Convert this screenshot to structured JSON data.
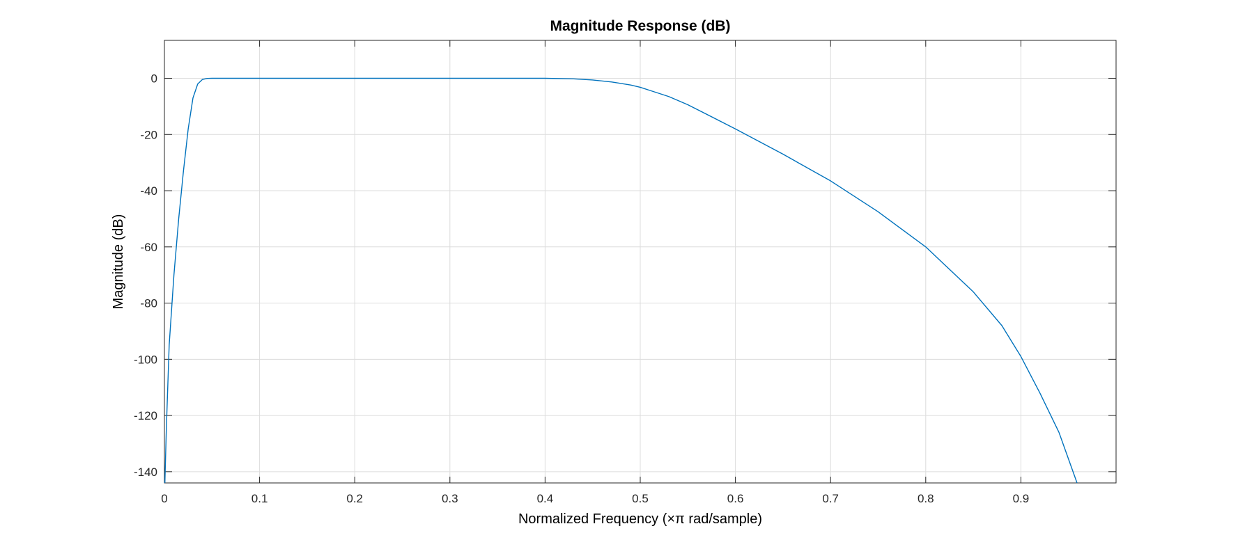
{
  "chart_data": {
    "type": "line",
    "title": "Magnitude Response (dB)",
    "xlabel": "Normalized Frequency (×π rad/sample)",
    "ylabel": "Magnitude (dB)",
    "xlim": [
      0,
      1
    ],
    "ylim": [
      -144,
      13.5
    ],
    "xticks": [
      0,
      0.1,
      0.2,
      0.3,
      0.4,
      0.5,
      0.6,
      0.7,
      0.8,
      0.9
    ],
    "xtick_labels": [
      "0",
      "0.1",
      "0.2",
      "0.3",
      "0.4",
      "0.5",
      "0.6",
      "0.7",
      "0.8",
      "0.9"
    ],
    "yticks": [
      0,
      -20,
      -40,
      -60,
      -80,
      -100,
      -120,
      -140
    ],
    "ytick_labels": [
      "0",
      "-20",
      "-40",
      "-60",
      "-80",
      "-100",
      "-120",
      "-140"
    ],
    "grid": true,
    "line_color": "#0072BD",
    "series": [
      {
        "x": [
          0.0005,
          0.002,
          0.005,
          0.01,
          0.015,
          0.02,
          0.025,
          0.03,
          0.035,
          0.04,
          0.045,
          0.05,
          0.06,
          0.1,
          0.2,
          0.3,
          0.4,
          0.43,
          0.45,
          0.47,
          0.49,
          0.5,
          0.51,
          0.53,
          0.55,
          0.6,
          0.65,
          0.7,
          0.75,
          0.8,
          0.85,
          0.88,
          0.9,
          0.92,
          0.94,
          0.959
        ],
        "y": [
          -144,
          -125,
          -95,
          -70,
          -50,
          -33,
          -18,
          -7,
          -2,
          -0.4,
          -0.05,
          0,
          0,
          0,
          0,
          0,
          0,
          -0.2,
          -0.6,
          -1.3,
          -2.4,
          -3.2,
          -4.3,
          -6.5,
          -9.4,
          -18,
          -27,
          -36.5,
          -47.5,
          -60,
          -76,
          -88,
          -99,
          -112,
          -126,
          -144
        ]
      }
    ]
  }
}
